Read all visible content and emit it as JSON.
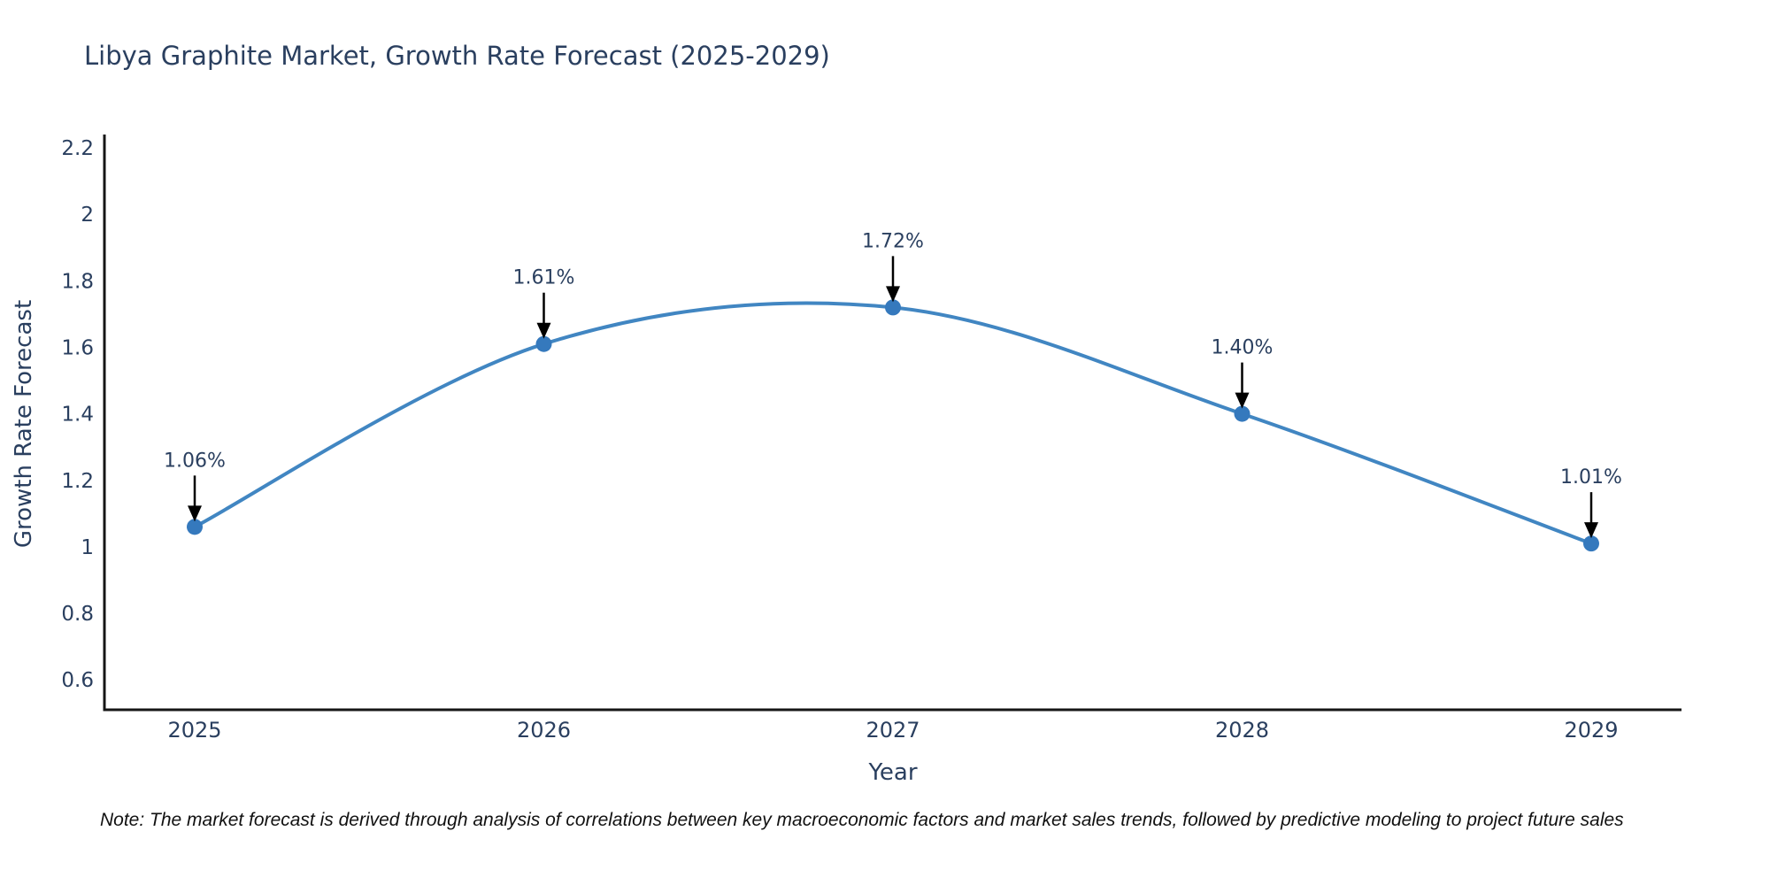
{
  "title": "Libya Graphite Market, Growth Rate Forecast (2025-2029)",
  "note": "Note: The market forecast is derived through analysis of correlations between key macroeconomic factors and market sales trends, followed by predictive modeling to project future sales",
  "chart_data": {
    "type": "line",
    "title": "Libya Graphite Market, Growth Rate Forecast (2025-2029)",
    "xlabel": "Year",
    "ylabel": "Growth Rate Forecast",
    "categories": [
      "2025",
      "2026",
      "2027",
      "2028",
      "2029"
    ],
    "series": [
      {
        "name": "Growth Rate Forecast",
        "values": [
          1.06,
          1.61,
          1.72,
          1.4,
          1.01
        ],
        "point_labels": [
          "1.06%",
          "1.61%",
          "1.72%",
          "1.40%",
          "1.01%"
        ]
      }
    ],
    "line_shape": "spline",
    "markers": true,
    "annotations": "arrow-above-each-point",
    "grid": false,
    "legend_position": "none",
    "ylim": [
      0.51,
      2.24
    ],
    "yticks": [
      "2.2",
      "2",
      "1.8",
      "1.6",
      "1.4",
      "1.2",
      "1",
      "0.8",
      "0.6"
    ],
    "ytick_values": [
      2.2,
      2.0,
      1.8,
      1.6,
      1.4,
      1.2,
      1.0,
      0.8,
      0.6
    ],
    "colors": {
      "line": "#4186c2",
      "marker": "#3579bd",
      "arrow": "#000000",
      "label_text": "#2a3f5f",
      "tick_text": "#2a3f5f",
      "axis": "#161616",
      "background": "#ffffff"
    }
  }
}
